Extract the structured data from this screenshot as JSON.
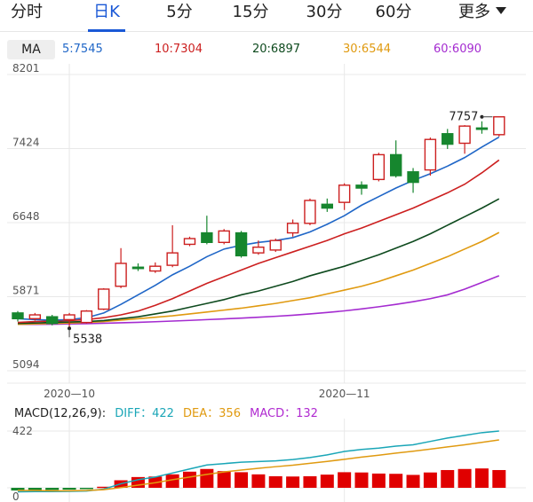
{
  "tabs": [
    {
      "label": "分时",
      "active": false
    },
    {
      "label": "日K",
      "active": true
    },
    {
      "label": "5分",
      "active": false
    },
    {
      "label": "15分",
      "active": false
    },
    {
      "label": "30分",
      "active": false
    },
    {
      "label": "60分",
      "active": false
    }
  ],
  "more_label": "更多",
  "ma_legend": {
    "badge": "MA",
    "items": [
      {
        "label": "5:7545",
        "color": "#1f66c7"
      },
      {
        "label": "10:7304",
        "color": "#cc1f1f"
      },
      {
        "label": "20:6897",
        "color": "#0e4a1e"
      },
      {
        "label": "30:6544",
        "color": "#e09a10"
      },
      {
        "label": "60:6090",
        "color": "#a42bd0"
      }
    ]
  },
  "macd_legend": {
    "title": "MACD(12,26,9):",
    "diff": "DIFF：422",
    "dea": "DEA：356",
    "macd": "MACD：132",
    "diff_color": "#1aa6b7",
    "dea_color": "#e09a10",
    "macd_color": "#b02ad0"
  },
  "colors": {
    "up": "#cc1f1f",
    "down": "#16862e",
    "grid": "#e8e8e8",
    "ma5": "#1f66c7",
    "ma10": "#cc1f1f",
    "ma20": "#0e4a1e",
    "ma30": "#e09a10",
    "ma60": "#a42bd0",
    "diff": "#1aa6b7",
    "dea": "#e09a10",
    "hist_up": "#e00000",
    "hist_down": "#16862e"
  },
  "chart_data": [
    {
      "type": "candlestick",
      "title": "",
      "y_ticks": [
        8201,
        7424,
        6648,
        5871,
        5094
      ],
      "ylim": [
        5094,
        8201
      ],
      "x_tick_labels": [
        {
          "label": "2020—10",
          "index": 3
        },
        {
          "label": "2020—11",
          "index": 19
        }
      ],
      "annotations": [
        {
          "label": "5538",
          "index": 3,
          "value": 5538
        },
        {
          "label": "7757",
          "index": 27,
          "value": 7757
        }
      ],
      "candles": [
        {
          "o": 5700,
          "c": 5640,
          "h": 5720,
          "l": 5610
        },
        {
          "o": 5640,
          "c": 5680,
          "h": 5700,
          "l": 5620
        },
        {
          "o": 5660,
          "c": 5590,
          "h": 5680,
          "l": 5570
        },
        {
          "o": 5630,
          "c": 5680,
          "h": 5700,
          "l": 5538
        },
        {
          "o": 5600,
          "c": 5720,
          "h": 5730,
          "l": 5590
        },
        {
          "o": 5740,
          "c": 5950,
          "h": 5960,
          "l": 5730
        },
        {
          "o": 5980,
          "c": 6220,
          "h": 6380,
          "l": 5960
        },
        {
          "o": 6180,
          "c": 6170,
          "h": 6220,
          "l": 6140
        },
        {
          "o": 6140,
          "c": 6190,
          "h": 6230,
          "l": 6120
        },
        {
          "o": 6200,
          "c": 6330,
          "h": 6620,
          "l": 6180
        },
        {
          "o": 6420,
          "c": 6480,
          "h": 6500,
          "l": 6400
        },
        {
          "o": 6540,
          "c": 6440,
          "h": 6720,
          "l": 6420
        },
        {
          "o": 6440,
          "c": 6560,
          "h": 6580,
          "l": 6420
        },
        {
          "o": 6540,
          "c": 6300,
          "h": 6560,
          "l": 6280
        },
        {
          "o": 6330,
          "c": 6390,
          "h": 6460,
          "l": 6310
        },
        {
          "o": 6360,
          "c": 6460,
          "h": 6480,
          "l": 6340
        },
        {
          "o": 6540,
          "c": 6640,
          "h": 6680,
          "l": 6500
        },
        {
          "o": 6640,
          "c": 6880,
          "h": 6900,
          "l": 6620
        },
        {
          "o": 6840,
          "c": 6800,
          "h": 6900,
          "l": 6760
        },
        {
          "o": 6860,
          "c": 7040,
          "h": 7060,
          "l": 6780
        },
        {
          "o": 7040,
          "c": 7010,
          "h": 7080,
          "l": 6940
        },
        {
          "o": 7100,
          "c": 7360,
          "h": 7380,
          "l": 7080
        },
        {
          "o": 7360,
          "c": 7140,
          "h": 7510,
          "l": 7120
        },
        {
          "o": 7180,
          "c": 7070,
          "h": 7220,
          "l": 6960
        },
        {
          "o": 7200,
          "c": 7520,
          "h": 7540,
          "l": 7140
        },
        {
          "o": 7580,
          "c": 7470,
          "h": 7630,
          "l": 7420
        },
        {
          "o": 7480,
          "c": 7660,
          "h": 7670,
          "l": 7370
        },
        {
          "o": 7640,
          "c": 7630,
          "h": 7710,
          "l": 7580
        },
        {
          "o": 7570,
          "c": 7757,
          "h": 7757,
          "l": 7550
        }
      ],
      "ma": {
        "ma5": [
          5640,
          5630,
          5625,
          5630,
          5650,
          5700,
          5790,
          5890,
          5990,
          6100,
          6190,
          6290,
          6370,
          6410,
          6440,
          6460,
          6490,
          6550,
          6630,
          6720,
          6830,
          6920,
          7010,
          7090,
          7160,
          7240,
          7330,
          7440,
          7545
        ],
        "ma10": [
          5600,
          5610,
          5615,
          5620,
          5630,
          5650,
          5680,
          5720,
          5780,
          5850,
          5930,
          6010,
          6080,
          6150,
          6220,
          6280,
          6340,
          6400,
          6460,
          6530,
          6590,
          6660,
          6730,
          6800,
          6880,
          6960,
          7050,
          7170,
          7304
        ],
        "ma20": [
          5590,
          5595,
          5600,
          5605,
          5610,
          5620,
          5640,
          5660,
          5690,
          5720,
          5760,
          5800,
          5840,
          5890,
          5930,
          5980,
          6030,
          6090,
          6140,
          6190,
          6250,
          6310,
          6380,
          6450,
          6530,
          6620,
          6710,
          6800,
          6897
        ],
        "ma30": [
          5580,
          5585,
          5590,
          5595,
          5600,
          5610,
          5625,
          5640,
          5655,
          5670,
          5690,
          5710,
          5730,
          5750,
          5775,
          5800,
          5830,
          5860,
          5900,
          5940,
          5980,
          6030,
          6090,
          6150,
          6220,
          6290,
          6370,
          6450,
          6544
        ],
        "ma60": [
          5580,
          5580,
          5582,
          5585,
          5588,
          5592,
          5597,
          5602,
          5608,
          5615,
          5622,
          5630,
          5638,
          5646,
          5655,
          5665,
          5676,
          5690,
          5705,
          5722,
          5742,
          5765,
          5790,
          5818,
          5850,
          5890,
          5950,
          6020,
          6090
        ]
      }
    },
    {
      "type": "macd",
      "y_ticks": [
        422,
        0
      ],
      "ylim": [
        -30,
        422
      ],
      "diff": [
        -30,
        -28,
        -28,
        -26,
        -24,
        -10,
        30,
        60,
        80,
        110,
        140,
        170,
        180,
        190,
        195,
        200,
        210,
        225,
        245,
        270,
        285,
        295,
        310,
        320,
        345,
        370,
        390,
        410,
        422
      ],
      "dea": [
        -20,
        -20,
        -22,
        -22,
        -20,
        -14,
        2,
        20,
        38,
        60,
        80,
        100,
        118,
        132,
        145,
        157,
        168,
        182,
        196,
        212,
        228,
        242,
        258,
        272,
        288,
        304,
        320,
        338,
        356
      ],
      "macd": [
        -20,
        -18,
        -16,
        -14,
        -10,
        8,
        56,
        80,
        84,
        100,
        120,
        140,
        124,
        116,
        100,
        86,
        84,
        86,
        98,
        116,
        114,
        106,
        104,
        96,
        114,
        132,
        140,
        144,
        132
      ]
    }
  ]
}
